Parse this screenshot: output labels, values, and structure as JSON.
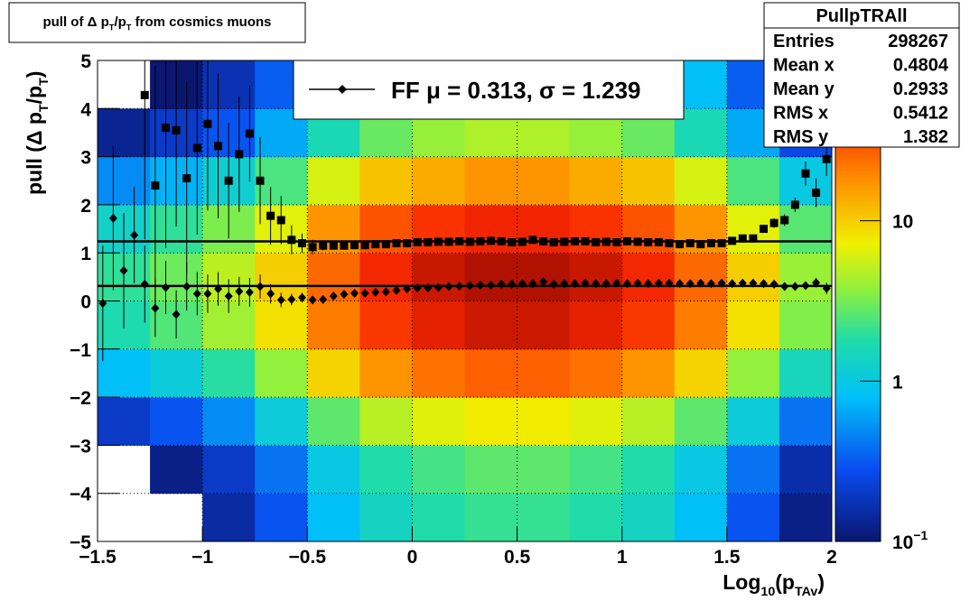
{
  "chart_data": {
    "type": "profile2d",
    "title": [
      "pull of Δ p",
      "T",
      "/p",
      "T",
      " from cosmics muons"
    ],
    "xlabel": [
      "Log",
      "10",
      "(p",
      "TAv",
      ")"
    ],
    "ylabel": [
      "pull (Δ p",
      "T",
      "/p",
      "T",
      ")"
    ],
    "xlim": [
      -1.5,
      2
    ],
    "ylim": [
      -5,
      5
    ],
    "xticks": [
      {
        "value": -1.5,
        "label": "−1.5"
      },
      {
        "value": -1,
        "label": "−1"
      },
      {
        "value": -0.5,
        "label": "−0.5"
      },
      0,
      0.5,
      1,
      1.5,
      2
    ],
    "yticks": [
      {
        "value": -5,
        "label": "−5"
      },
      {
        "value": -4,
        "label": "−4"
      },
      {
        "value": -3,
        "label": "−3"
      },
      {
        "value": -2,
        "label": "−2"
      },
      {
        "value": -1,
        "label": "−1"
      },
      0,
      1,
      2,
      3,
      4,
      5
    ],
    "grid": true,
    "zlim": [
      0.1,
      100
    ],
    "zlog": true,
    "zticks": [
      {
        "value": 0.1,
        "label": "10",
        "exponent": "−1"
      },
      1,
      10
    ],
    "heatmap": {
      "xbins": [
        -1.5,
        -1.25,
        -1,
        -0.75,
        -0.5,
        -0.25,
        0,
        0.25,
        0.5,
        0.75,
        1,
        1.25,
        1.5,
        1.75,
        2
      ],
      "ybins": [
        -5,
        -4,
        -3,
        -2,
        -1,
        0,
        1,
        2,
        3,
        4,
        5
      ],
      "counts": [
        [
          0.06,
          0.09,
          0.15,
          0.3,
          0.8,
          1.4,
          1.8,
          2.1,
          2.1,
          1.8,
          1.4,
          0.8,
          0.3,
          0.12
        ],
        [
          0.08,
          0.12,
          0.2,
          0.4,
          1,
          1.8,
          2.3,
          2.7,
          2.7,
          2.3,
          1.8,
          1,
          0.4,
          0.16
        ],
        [
          0.2,
          0.3,
          0.5,
          1.1,
          2.7,
          4.9,
          6.5,
          7.6,
          7.6,
          6.5,
          4.9,
          2.7,
          1.1,
          0.4
        ],
        [
          0.8,
          1.1,
          1.9,
          3.8,
          9.5,
          17,
          23,
          27,
          27,
          23,
          17,
          9.5,
          3.8,
          1.5
        ],
        [
          1.7,
          2.5,
          4.2,
          8.4,
          21,
          38,
          50,
          59,
          59,
          50,
          38,
          21,
          8.4,
          3.4
        ],
        [
          2,
          3,
          5,
          10,
          25,
          45,
          60,
          70,
          70,
          60,
          45,
          25,
          10,
          4
        ],
        [
          1.3,
          2,
          3.3,
          6.6,
          17,
          30,
          40,
          46,
          46,
          40,
          30,
          17,
          6.6,
          2.6
        ],
        [
          0.5,
          0.7,
          1.2,
          2.4,
          6,
          11,
          14,
          17,
          17,
          14,
          11,
          6,
          2.4,
          1
        ],
        [
          0.13,
          0.2,
          0.3,
          0.65,
          1.6,
          2.9,
          3.9,
          4.6,
          4.6,
          3.9,
          2.9,
          1.6,
          0.65,
          0.26
        ],
        [
          0.07,
          0.1,
          0.17,
          0.33,
          0.8,
          1.5,
          2,
          2.3,
          2.3,
          2,
          1.5,
          0.8,
          0.33,
          0.13
        ]
      ]
    },
    "x": [
      -1.475,
      -1.425,
      -1.375,
      -1.325,
      -1.275,
      -1.225,
      -1.175,
      -1.125,
      -1.075,
      -1.025,
      -0.975,
      -0.925,
      -0.875,
      -0.825,
      -0.775,
      -0.725,
      -0.675,
      -0.625,
      -0.575,
      -0.525,
      -0.475,
      -0.425,
      -0.375,
      -0.325,
      -0.275,
      -0.225,
      -0.175,
      -0.125,
      -0.075,
      -0.025,
      0.025,
      0.075,
      0.125,
      0.175,
      0.225,
      0.275,
      0.325,
      0.375,
      0.425,
      0.475,
      0.525,
      0.575,
      0.625,
      0.675,
      0.725,
      0.775,
      0.825,
      0.875,
      0.925,
      0.975,
      1.025,
      1.075,
      1.125,
      1.175,
      1.225,
      1.275,
      1.325,
      1.375,
      1.425,
      1.475,
      1.525,
      1.575,
      1.625,
      1.675,
      1.725,
      1.775,
      1.825,
      1.875,
      1.925,
      1.975
    ],
    "series": [
      {
        "marker": "square",
        "color": "#000000",
        "values": [
          null,
          null,
          null,
          null,
          4.28,
          2.4,
          3.6,
          3.55,
          2.55,
          3.18,
          3.68,
          3.22,
          2.5,
          3.05,
          3.48,
          2.5,
          1.77,
          1.68,
          1.27,
          1.2,
          1.12,
          1.15,
          1.15,
          1.15,
          1.16,
          1.16,
          1.18,
          1.18,
          1.2,
          1.2,
          1.22,
          1.22,
          1.23,
          1.23,
          1.24,
          1.23,
          1.24,
          1.25,
          1.24,
          1.22,
          1.23,
          1.27,
          1.24,
          1.22,
          1.23,
          1.24,
          1.24,
          1.22,
          1.23,
          1.22,
          1.24,
          1.23,
          1.22,
          1.22,
          1.2,
          1.18,
          1.2,
          1.18,
          1.2,
          1.2,
          1.25,
          1.3,
          1.3,
          1.5,
          1.62,
          1.68,
          2.0,
          2.65,
          2.25,
          2.95
        ],
        "errors": [
          null,
          null,
          null,
          null,
          3,
          2.5,
          2.5,
          2,
          2,
          1.8,
          1.8,
          1.5,
          1.2,
          1.2,
          1,
          0.9,
          0.6,
          0.5,
          0.3,
          0.2,
          0.15,
          0.1,
          0.08,
          0.06,
          0.03,
          0.03,
          0.03,
          0.03,
          0.03,
          0.03,
          0.03,
          0.03,
          0.03,
          0.03,
          0.03,
          0.03,
          0.03,
          0.03,
          0.03,
          0.03,
          0.03,
          0.03,
          0.03,
          0.03,
          0.03,
          0.03,
          0.03,
          0.03,
          0.03,
          0.03,
          0.03,
          0.03,
          0.03,
          0.03,
          0.03,
          0.03,
          0.03,
          0.03,
          0.03,
          0.03,
          0.03,
          0.05,
          0.06,
          0.08,
          0.1,
          0.12,
          0.15,
          0.25,
          0.3,
          0.35
        ]
      },
      {
        "marker": "diamond",
        "color": "#000000",
        "values": [
          -0.05,
          1.72,
          0.63,
          1.37,
          0.35,
          -0.15,
          0.28,
          -0.28,
          0.3,
          0.15,
          0.15,
          0.25,
          0.1,
          0.2,
          0.18,
          0.3,
          0.15,
          0.02,
          0.03,
          0.07,
          0.02,
          0.03,
          0.1,
          0.14,
          0.16,
          0.16,
          0.18,
          0.19,
          0.22,
          0.25,
          0.27,
          0.27,
          0.28,
          0.3,
          0.31,
          0.32,
          0.33,
          0.33,
          0.35,
          0.35,
          0.36,
          0.36,
          0.4,
          0.35,
          0.36,
          0.36,
          0.37,
          0.36,
          0.36,
          0.37,
          0.36,
          0.37,
          0.36,
          0.37,
          0.37,
          0.36,
          0.36,
          0.37,
          0.36,
          0.37,
          0.36,
          0.37,
          0.37,
          0.36,
          0.35,
          0.3,
          0.3,
          0.32,
          0.38,
          0.26
        ],
        "errors": [
          1.2,
          1.5,
          1.2,
          1.0,
          0.8,
          0.6,
          0.55,
          0.5,
          0.5,
          0.45,
          0.4,
          0.35,
          0.35,
          0.3,
          0.3,
          0.25,
          0.2,
          0.15,
          0.12,
          0.1,
          0.08,
          0.07,
          0.06,
          0.05,
          0.03,
          0.03,
          0.03,
          0.03,
          0.03,
          0.03,
          0.03,
          0.03,
          0.03,
          0.03,
          0.03,
          0.03,
          0.03,
          0.03,
          0.03,
          0.03,
          0.03,
          0.03,
          0.03,
          0.03,
          0.03,
          0.03,
          0.03,
          0.03,
          0.03,
          0.03,
          0.03,
          0.03,
          0.03,
          0.03,
          0.03,
          0.03,
          0.03,
          0.03,
          0.03,
          0.03,
          0.03,
          0.04,
          0.04,
          0.05,
          0.05,
          0.06,
          0.07,
          0.08,
          0.1,
          0.12
        ]
      }
    ],
    "fit": {
      "mu": 0.313,
      "sigma": 1.239
    },
    "legend": {
      "label": "FF μ =  0.313, σ =   1.239"
    },
    "stats": {
      "title": "PullpTRAll",
      "rows": [
        [
          "Entries",
          298267
        ],
        [
          "Mean x",
          0.4804
        ],
        [
          "Mean y",
          0.2933
        ],
        [
          "RMS x",
          0.5412
        ],
        [
          "RMS y",
          1.382
        ]
      ]
    }
  }
}
